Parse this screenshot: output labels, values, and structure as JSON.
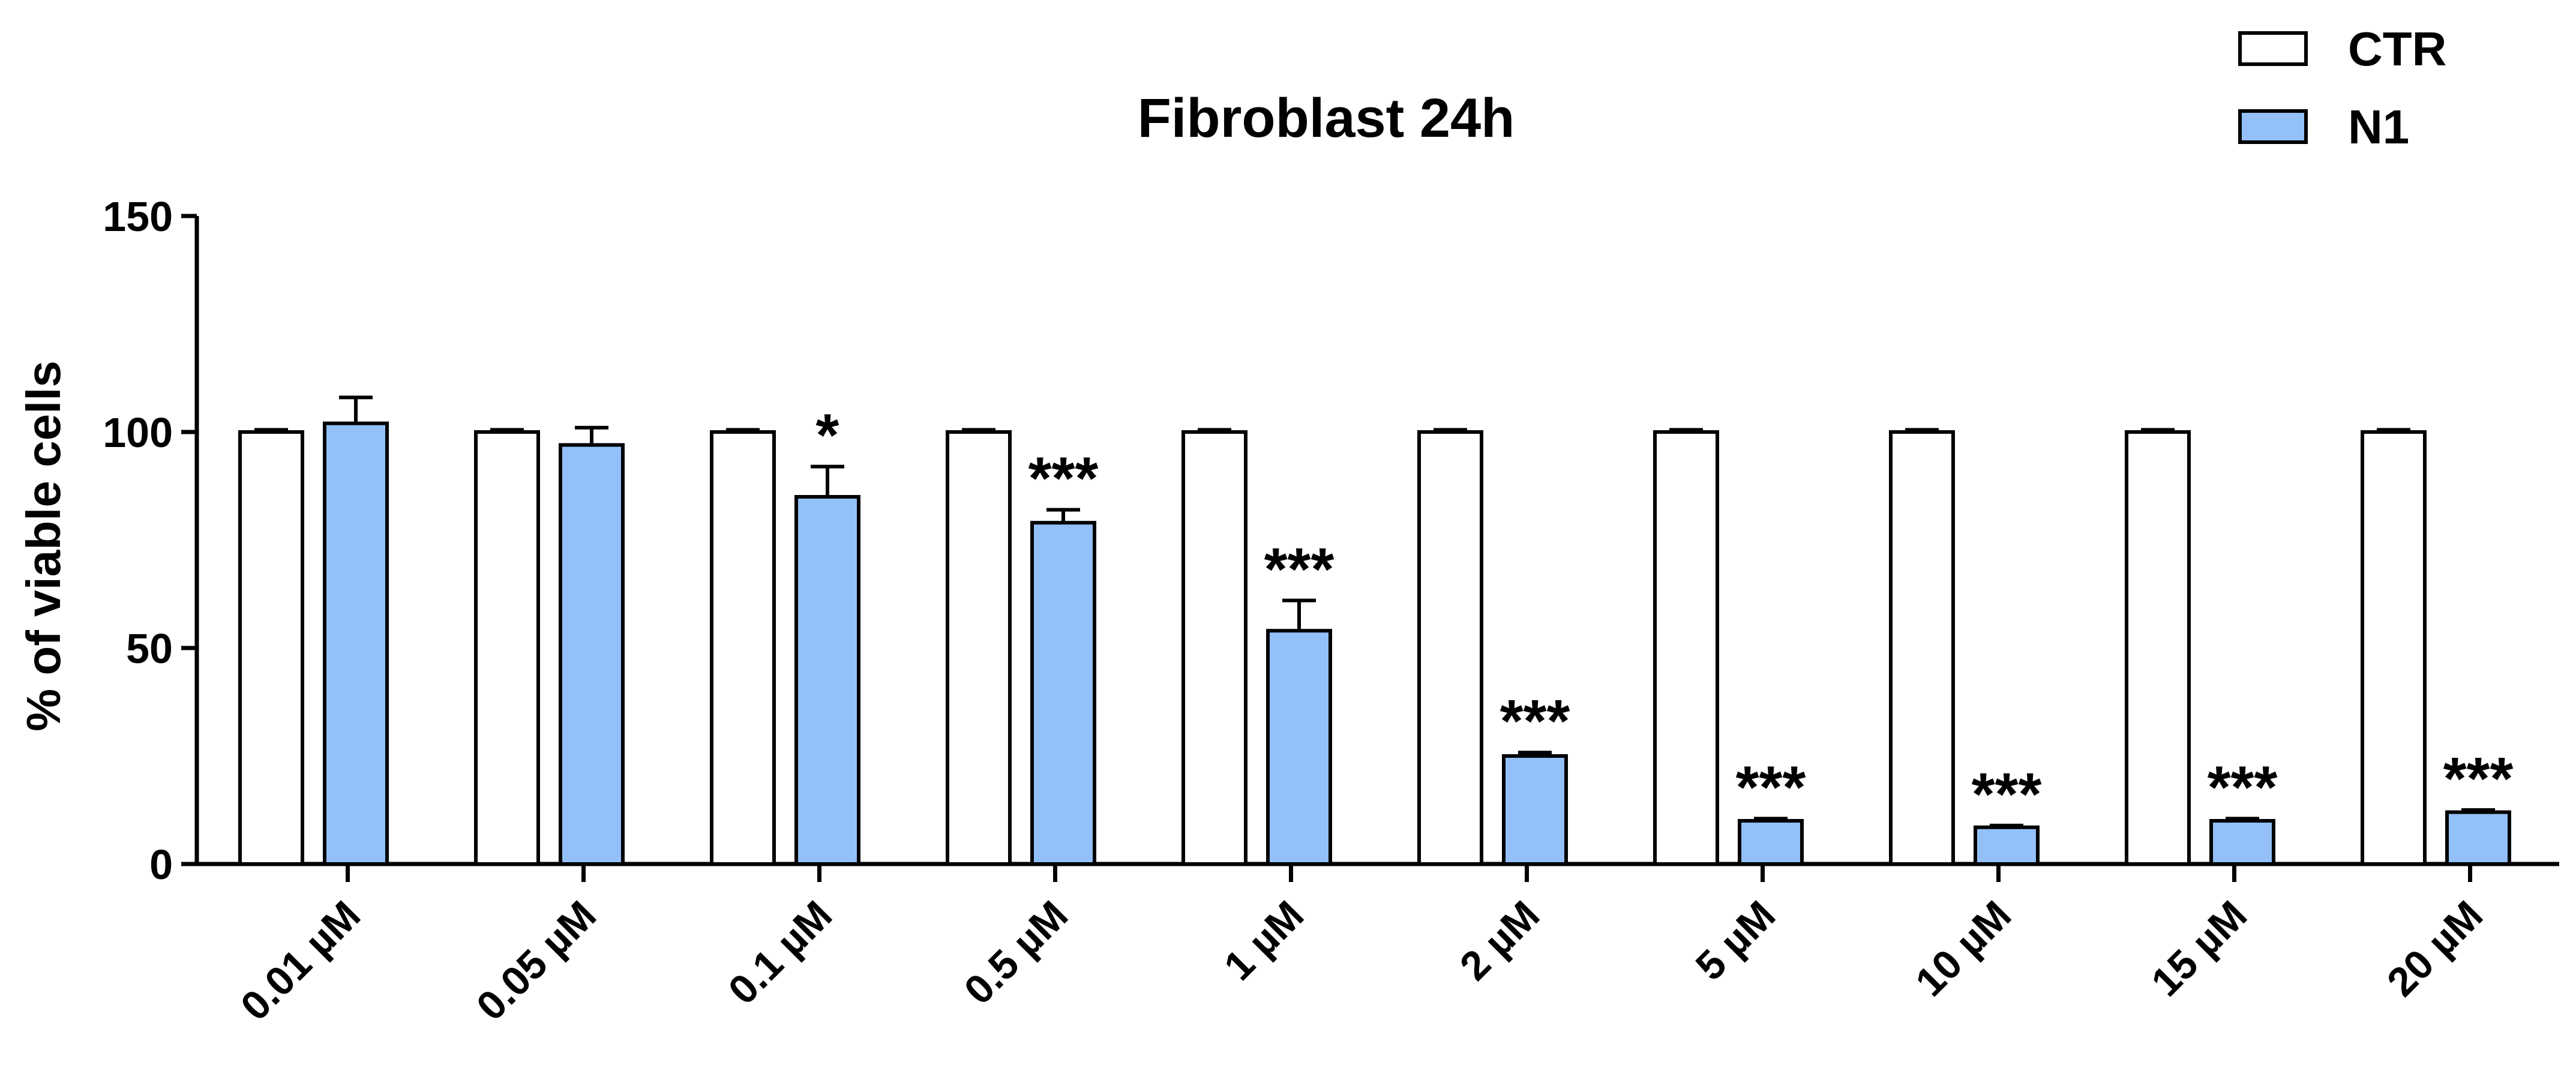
{
  "chart_data": {
    "type": "bar",
    "title": "Fibroblast 24h",
    "ylabel": "% of viable cells",
    "xlabel": "",
    "ylim": [
      0,
      150
    ],
    "yticks": [
      0,
      50,
      100,
      150
    ],
    "categories": [
      "0.01 µM",
      "0.05 µM",
      "0.1 µM",
      "0.5 µM",
      "1 µM",
      "2 µM",
      "5 µM",
      "10 µM",
      "15 µM",
      "20 µM"
    ],
    "series": [
      {
        "name": "CTR",
        "color": "#ffffff",
        "values": [
          100,
          100,
          100,
          100,
          100,
          100,
          100,
          100,
          100,
          100
        ],
        "errors": [
          0.5,
          0.5,
          0.5,
          0.5,
          0.5,
          0.5,
          0.5,
          0.5,
          0.5,
          0.5
        ]
      },
      {
        "name": "N1",
        "color": "#93c0f8",
        "values": [
          102,
          97,
          85,
          79,
          54,
          25,
          10,
          8.5,
          10,
          12
        ],
        "errors": [
          6,
          4,
          7,
          3,
          7,
          0.8,
          0.5,
          0.4,
          0.5,
          0.5
        ]
      }
    ],
    "significance": [
      "",
      "",
      "*",
      "***",
      "***",
      "***",
      "***",
      "***",
      "***",
      "***"
    ],
    "legend_position": "top-right",
    "grid": false
  }
}
